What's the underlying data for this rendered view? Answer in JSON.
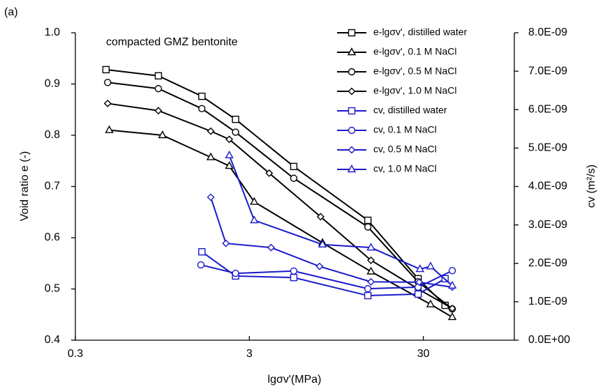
{
  "chart_data": {
    "type": "line",
    "title": "(a)",
    "annotation": "compacted GMZ bentonite",
    "xlabel": "lgσv'(MPa)",
    "ylabel": "Void ratio e (-)",
    "y2label": "cv (m²/s)",
    "xscale": "log",
    "xlim": [
      0.3,
      100
    ],
    "xticks": [
      0.3,
      3,
      30
    ],
    "ylim": [
      0.4,
      1
    ],
    "yticks": [
      0.4,
      0.5,
      0.6,
      0.7,
      0.8,
      0.9,
      {
        "value": 1,
        "label": "1.0"
      }
    ],
    "y2lim": [
      0,
      8e-09
    ],
    "y2ticks": [
      {
        "value": 0,
        "label": "0.0E+00"
      },
      {
        "value": 1e-09,
        "label": "1.0E-09"
      },
      {
        "value": 2e-09,
        "label": "2.0E-09"
      },
      {
        "value": 3e-09,
        "label": "3.0E-09"
      },
      {
        "value": 4e-09,
        "label": "4.0E-09"
      },
      {
        "value": 5e-09,
        "label": "5.0E-09"
      },
      {
        "value": 6e-09,
        "label": "6.0E-09"
      },
      {
        "value": 7e-09,
        "label": "7.0E-09"
      },
      {
        "value": 8e-09,
        "label": "8.0E-09"
      }
    ],
    "legend": "upper right",
    "grid": false,
    "series": [
      {
        "name": "e-lgσv', distilled water",
        "color": "#000000",
        "marker": "square",
        "x": [
          0.45,
          0.9,
          1.6,
          2.5,
          5.4,
          14.4,
          28,
          40
        ],
        "values": [
          0.928,
          0.916,
          0.876,
          0.831,
          0.739,
          0.634,
          0.52,
          0.468
        ]
      },
      {
        "name": "e-lgσv', 0.1 M NaCl",
        "color": "#000000",
        "marker": "triangle",
        "x": [
          0.47,
          0.95,
          1.8,
          2.3,
          3.2,
          7.9,
          15,
          33,
          44
        ],
        "values": [
          0.81,
          0.8,
          0.757,
          0.74,
          0.67,
          0.59,
          0.534,
          0.47,
          0.445
        ]
      },
      {
        "name": "e-lgσv', 0.5 M NaCl",
        "color": "#000000",
        "marker": "circle",
        "x": [
          0.46,
          0.9,
          1.6,
          2.5,
          5.4,
          14.4,
          28,
          44
        ],
        "values": [
          0.903,
          0.891,
          0.852,
          0.806,
          0.716,
          0.621,
          0.514,
          0.461
        ]
      },
      {
        "name": "e-lgσv', 1.0 M NaCl",
        "color": "#000000",
        "marker": "diamond",
        "x": [
          0.46,
          0.9,
          1.8,
          2.3,
          3.9,
          7.7,
          15,
          28,
          44
        ],
        "values": [
          0.862,
          0.848,
          0.808,
          0.792,
          0.726,
          0.641,
          0.556,
          0.5,
          0.462
        ]
      },
      {
        "name": "cv, distilled water",
        "color": "#1a1acc",
        "marker": "square",
        "axis": "y2",
        "x": [
          1.6,
          2.5,
          5.4,
          14.4,
          28,
          40
        ],
        "values": [
          2.3e-09,
          1.67e-09,
          1.63e-09,
          1.16e-09,
          1.2e-09,
          1.6e-09
        ]
      },
      {
        "name": "cv, 0.1 M NaCl",
        "color": "#1a1acc",
        "marker": "circle",
        "axis": "y2",
        "x": [
          1.58,
          2.5,
          5.4,
          14.4,
          28,
          44
        ],
        "values": [
          1.96e-09,
          1.74e-09,
          1.8e-09,
          1.34e-09,
          1.38e-09,
          1.81e-09
        ]
      },
      {
        "name": "cv, 0.5 M NaCl",
        "color": "#1a1acc",
        "marker": "diamond",
        "axis": "y2",
        "x": [
          1.8,
          2.2,
          4,
          7.6,
          15,
          28.4,
          44
        ],
        "values": [
          3.72e-09,
          2.52e-09,
          2.41e-09,
          1.92e-09,
          1.52e-09,
          1.51e-09,
          1.38e-09
        ]
      },
      {
        "name": "cv, 1.0 M NaCl",
        "color": "#1a1acc",
        "marker": "triangle",
        "axis": "y2",
        "x": [
          2.3,
          3.2,
          7.9,
          15,
          28.7,
          33,
          44
        ],
        "values": [
          4.81e-09,
          3.12e-09,
          2.49e-09,
          2.41e-09,
          1.85e-09,
          1.92e-09,
          1.42e-09
        ]
      }
    ]
  }
}
